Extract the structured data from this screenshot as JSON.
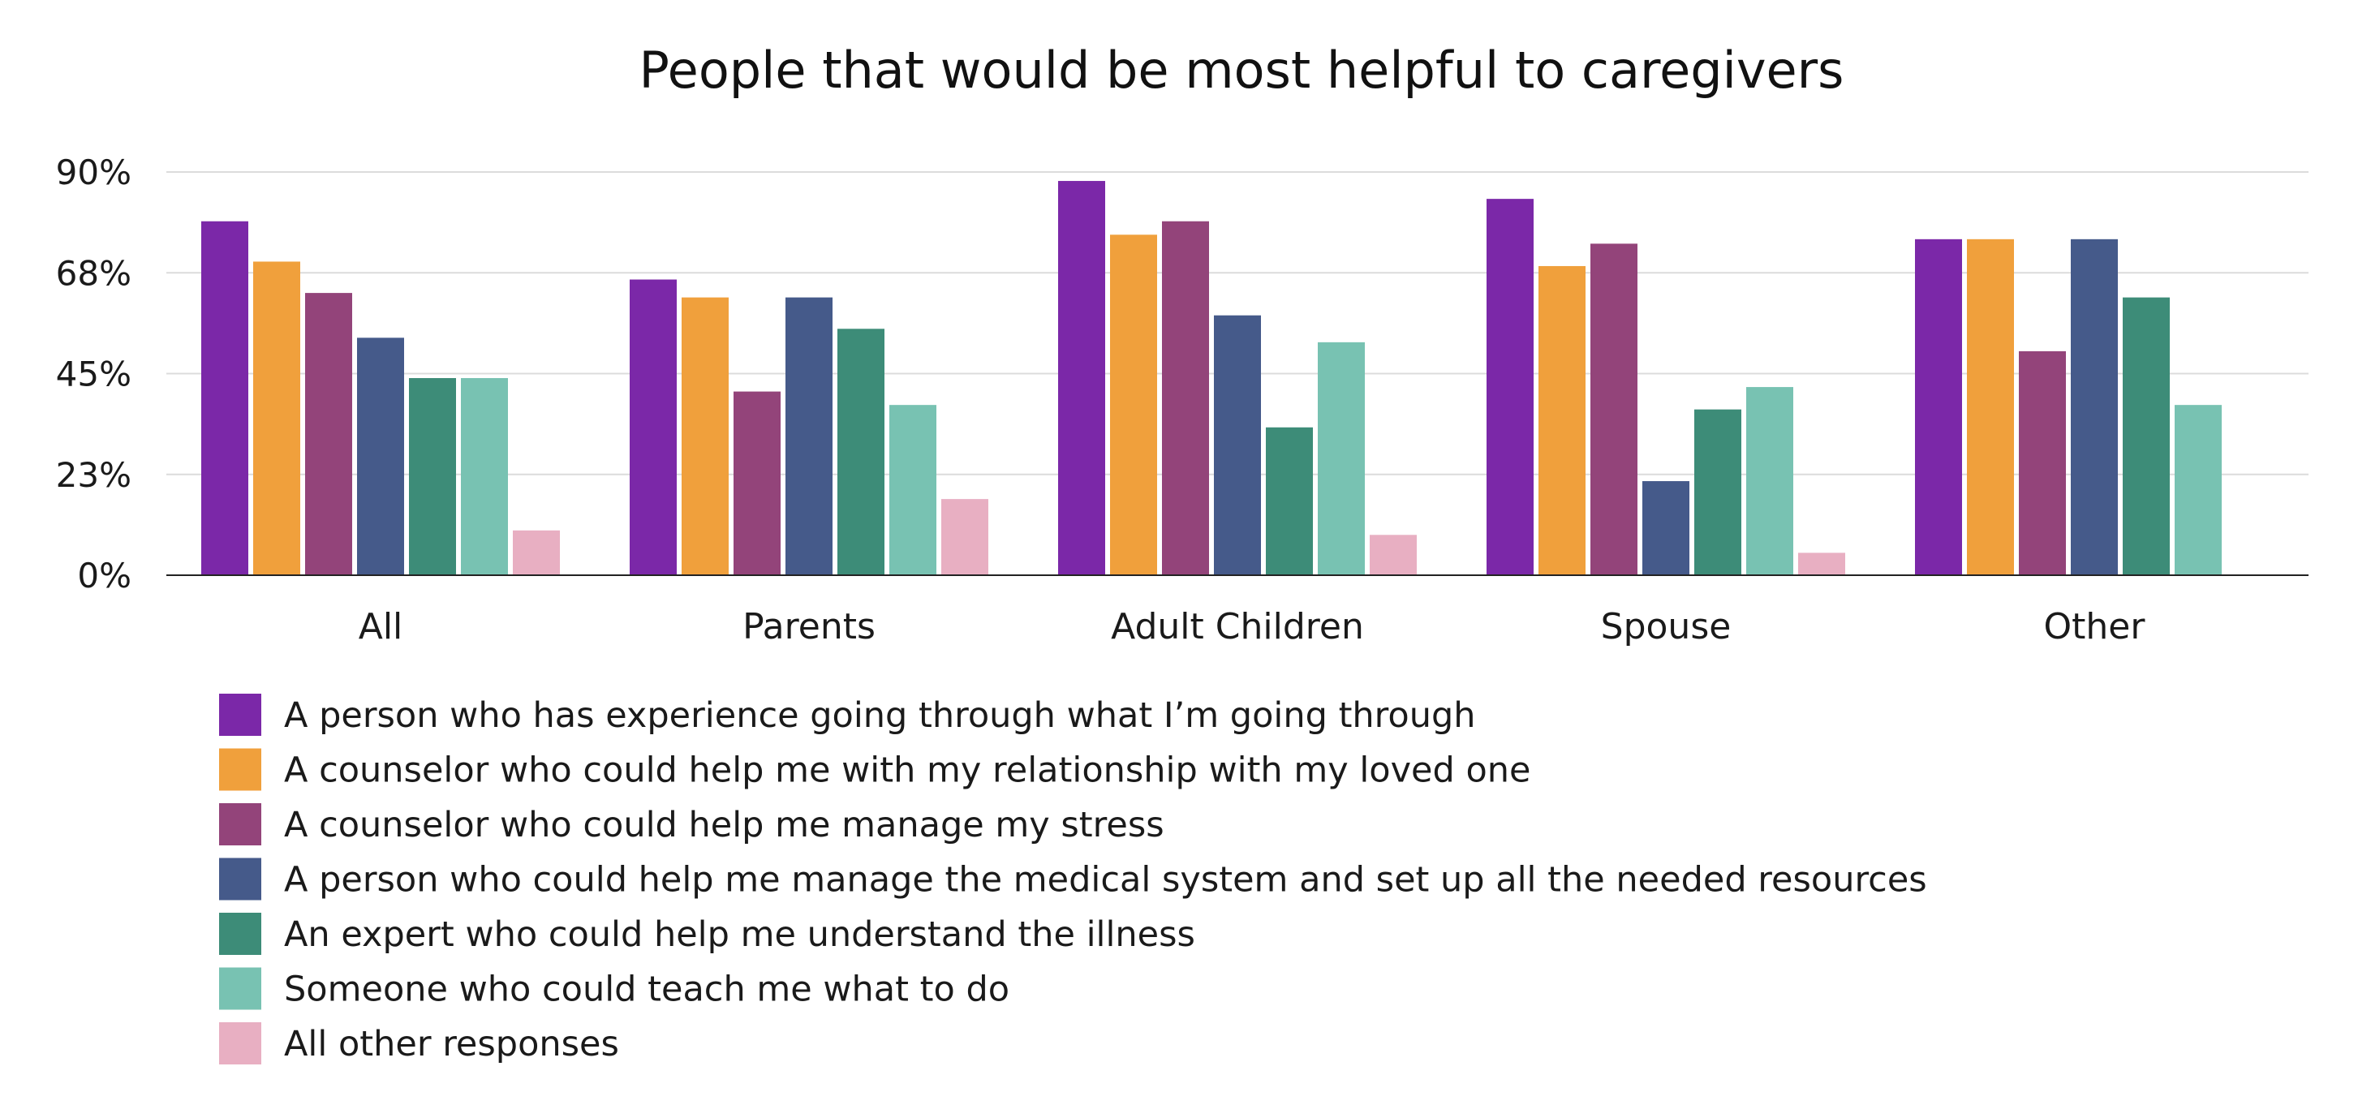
{
  "chart_data": {
    "type": "bar",
    "title": "People that would be most helpful to caregivers",
    "xlabel": "",
    "ylabel": "",
    "ylim": [
      0,
      90
    ],
    "y_ticks": [
      0,
      22.5,
      45,
      67.5,
      90
    ],
    "y_tick_labels": [
      "0%",
      "23%",
      "45%",
      "68%",
      "90%"
    ],
    "grid": true,
    "legend_position": "bottom",
    "categories": [
      "All",
      "Parents",
      "Adult Children",
      "Spouse",
      "Other"
    ],
    "series": [
      {
        "name": "A person who has experience going through what I’m going through",
        "color": "#7B28A8",
        "values": [
          79,
          66,
          88,
          84,
          75
        ]
      },
      {
        "name": "A counselor who could help me with my relationship with my loved one",
        "color": "#F0A03C",
        "values": [
          70,
          62,
          76,
          69,
          75
        ]
      },
      {
        "name": "A counselor who could help me manage my stress",
        "color": "#93447A",
        "values": [
          63,
          41,
          79,
          74,
          50
        ]
      },
      {
        "name": "A person who could help me manage the medical system and set up all the needed resources",
        "color": "#455A8A",
        "values": [
          53,
          62,
          58,
          21,
          75
        ]
      },
      {
        "name": "An expert who could help me understand the illness",
        "color": "#3D8C78",
        "values": [
          44,
          55,
          33,
          37,
          62
        ]
      },
      {
        "name": "Someone who could teach me what to do",
        "color": "#78C2B2",
        "values": [
          44,
          38,
          52,
          42,
          38
        ]
      },
      {
        "name": "All other responses",
        "color": "#E8AFC2",
        "values": [
          10,
          17,
          9,
          5,
          null
        ]
      }
    ]
  }
}
